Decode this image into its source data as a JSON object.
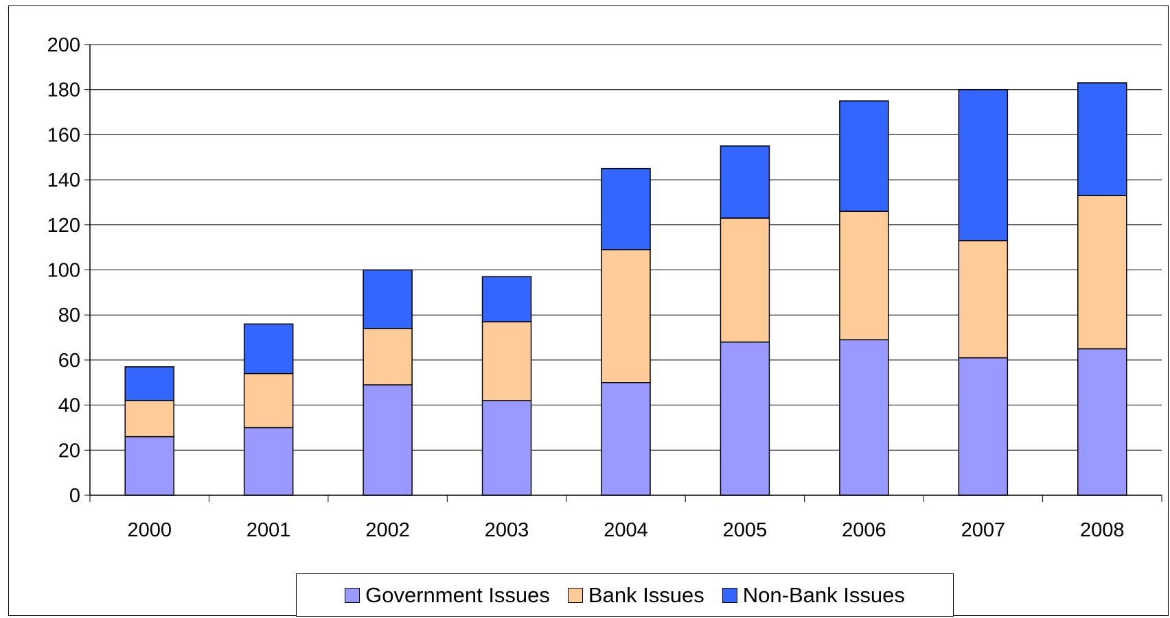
{
  "chart_data": {
    "type": "bar",
    "stacked": true,
    "categories": [
      "2000",
      "2001",
      "2002",
      "2003",
      "2004",
      "2005",
      "2006",
      "2007",
      "2008"
    ],
    "series": [
      {
        "name": "Government Issues",
        "color": "#9999FF",
        "values": [
          26,
          30,
          49,
          42,
          50,
          68,
          69,
          61,
          65
        ]
      },
      {
        "name": "Bank Issues",
        "color": "#FFCC99",
        "values": [
          16,
          24,
          25,
          35,
          59,
          55,
          57,
          52,
          68
        ]
      },
      {
        "name": "Non-Bank Issues",
        "color": "#3366FF",
        "values": [
          15,
          22,
          26,
          20,
          36,
          32,
          49,
          67,
          50
        ]
      }
    ],
    "ylim": [
      0,
      200
    ],
    "yticks": [
      "0",
      "20",
      "40",
      "60",
      "80",
      "100",
      "120",
      "140",
      "160",
      "180",
      "200"
    ],
    "grid": true,
    "legend_position": "bottom"
  }
}
